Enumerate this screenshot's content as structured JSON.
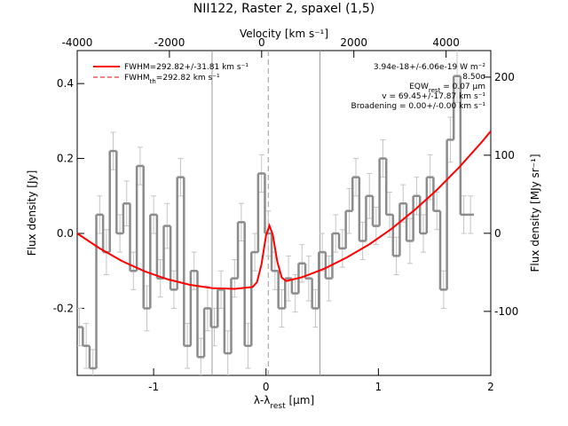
{
  "chart_data": {
    "type": "step",
    "title": "NII122, Raster 2, spaxel (1,5)",
    "xlabel": {
      "main": "λ-λ",
      "sub": "rest",
      "unit": " [μm]"
    },
    "x2label": "Velocity [km s⁻¹]",
    "ylabel": "Flux density [Jy]",
    "y2label": "Flux density [MJy sr⁻¹]",
    "xlim": [
      -1.68,
      2.0
    ],
    "xticks": [
      -1,
      0,
      1,
      2
    ],
    "x2lim": [
      -4000,
      4970
    ],
    "x2ticks": [
      -4000,
      -2000,
      0,
      2000,
      4000
    ],
    "ylim": [
      -0.379,
      0.488
    ],
    "yticks": [
      -0.2,
      {
        "value": 0,
        "label": "0.0"
      },
      0.2,
      0.4
    ],
    "y2lim": [
      -182,
      234
    ],
    "y2ticks": [
      -100,
      0,
      100,
      200
    ],
    "series": [
      {
        "type": "step",
        "color": "#8c8c8c",
        "error_color": "#c4c4c4",
        "x": [
          -1.66,
          -1.6,
          -1.54,
          -1.48,
          -1.42,
          -1.36,
          -1.3,
          -1.24,
          -1.18,
          -1.12,
          -1.06,
          -1.0,
          -0.94,
          -0.88,
          -0.82,
          -0.76,
          -0.7,
          -0.64,
          -0.58,
          -0.52,
          -0.46,
          -0.4,
          -0.34,
          -0.28,
          -0.22,
          -0.16,
          -0.1,
          -0.04,
          0.02,
          0.08,
          0.14,
          0.2,
          0.26,
          0.32,
          0.38,
          0.44,
          0.5,
          0.56,
          0.62,
          0.68,
          0.74,
          0.8,
          0.86,
          0.92,
          0.98,
          1.04,
          1.1,
          1.16,
          1.22,
          1.28,
          1.34,
          1.4,
          1.46,
          1.52,
          1.58,
          1.64,
          1.7,
          1.76,
          1.82
        ],
        "values": [
          -0.25,
          -0.3,
          -0.36,
          0.05,
          -0.05,
          0.22,
          0.0,
          0.08,
          -0.1,
          0.18,
          -0.2,
          0.05,
          -0.12,
          0.02,
          -0.15,
          0.15,
          -0.3,
          -0.1,
          -0.33,
          -0.2,
          -0.25,
          -0.15,
          -0.32,
          -0.12,
          0.03,
          -0.3,
          -0.05,
          0.16,
          0.0,
          -0.1,
          -0.2,
          -0.12,
          -0.16,
          -0.08,
          -0.12,
          -0.2,
          -0.05,
          -0.12,
          0.0,
          -0.04,
          0.06,
          0.15,
          -0.02,
          0.1,
          0.02,
          0.2,
          0.05,
          -0.06,
          0.08,
          -0.02,
          0.1,
          0.0,
          0.15,
          0.06,
          -0.15,
          0.25,
          0.42,
          0.05,
          0.05
        ],
        "errors": [
          0.05,
          0.06,
          0.05,
          0.05,
          0.06,
          0.05,
          0.05,
          0.06,
          0.05,
          0.05,
          0.06,
          0.05,
          0.05,
          0.06,
          0.05,
          0.05,
          0.06,
          0.05,
          0.05,
          0.06,
          0.05,
          0.05,
          0.06,
          0.05,
          0.05,
          0.06,
          0.05,
          0.05,
          0.06,
          0.05,
          0.05,
          0.06,
          0.05,
          0.05,
          0.06,
          0.05,
          0.05,
          0.06,
          0.05,
          0.05,
          0.06,
          0.05,
          0.05,
          0.06,
          0.05,
          0.05,
          0.06,
          0.05,
          0.05,
          0.06,
          0.05,
          0.05,
          0.06,
          0.05,
          0.05,
          0.06,
          0.07,
          0.05,
          0.05
        ]
      },
      {
        "type": "line",
        "color": "#ff0000",
        "name": "FWHM=292.82+/-31.81 km s⁻¹",
        "x": [
          -1.68,
          -1.48,
          -1.28,
          -1.08,
          -0.88,
          -0.68,
          -0.48,
          -0.28,
          -0.12,
          -0.08,
          -0.04,
          0,
          0.03,
          0.06,
          0.1,
          0.14,
          0.18,
          0.32,
          0.52,
          0.72,
          0.92,
          1.12,
          1.32,
          1.52,
          1.72,
          1.92,
          2.0
        ],
        "values": [
          0.0,
          -0.04,
          -0.074,
          -0.101,
          -0.122,
          -0.137,
          -0.146,
          -0.148,
          -0.143,
          -0.13,
          -0.082,
          -0.006,
          0.021,
          -0.003,
          -0.075,
          -0.118,
          -0.127,
          -0.117,
          -0.094,
          -0.064,
          -0.029,
          0.013,
          0.062,
          0.116,
          0.177,
          0.244,
          0.273
        ]
      }
    ],
    "legend_extra": {
      "main": "FWHM",
      "sub": "th",
      "rest": "=292.82 km s⁻¹",
      "color": "#ff0000",
      "dashed": true
    },
    "vlines": {
      "solid": [
        -0.48,
        0.48
      ],
      "dashed": [
        0.02
      ],
      "color": "#9a9a9a"
    },
    "annotations": [
      {
        "parts": [
          "3.94e-18+/-6.06e-19 W m⁻²"
        ]
      },
      {
        "parts": [
          "8.50σ"
        ]
      },
      {
        "parts": [
          "EQW",
          "rest",
          " = 0.07 μm"
        ]
      },
      {
        "parts": [
          "v = 69.45+/-17.87 km s⁻¹"
        ]
      },
      {
        "parts": [
          "Broadening = 0.00+/-0.00 km s⁻¹"
        ]
      }
    ]
  }
}
